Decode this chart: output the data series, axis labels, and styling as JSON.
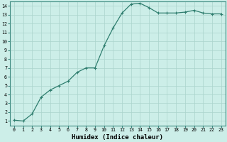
{
  "x": [
    0,
    1,
    2,
    3,
    4,
    5,
    6,
    7,
    8,
    9,
    10,
    11,
    12,
    13,
    14,
    15,
    16,
    17,
    18,
    19,
    20,
    21,
    22,
    23
  ],
  "y": [
    1.1,
    1.0,
    1.8,
    3.7,
    4.5,
    5.0,
    5.5,
    6.5,
    7.0,
    7.0,
    9.5,
    11.5,
    13.2,
    14.2,
    14.3,
    13.8,
    13.2,
    13.2,
    13.2,
    13.3,
    13.5,
    13.2,
    13.1,
    13.1
  ],
  "line_color": "#2e7d6e",
  "marker": "+",
  "marker_size": 3,
  "bg_color": "#cceee8",
  "grid_color": "#aad4cc",
  "xlabel": "Humidex (Indice chaleur)",
  "xlim": [
    -0.5,
    23.5
  ],
  "ylim": [
    0.5,
    14.5
  ],
  "yticks": [
    1,
    2,
    3,
    4,
    5,
    6,
    7,
    8,
    9,
    10,
    11,
    12,
    13,
    14
  ],
  "xticks": [
    0,
    1,
    2,
    3,
    4,
    5,
    6,
    7,
    8,
    9,
    10,
    11,
    12,
    13,
    14,
    15,
    16,
    17,
    18,
    19,
    20,
    21,
    22,
    23
  ],
  "tick_label_fontsize": 4.8,
  "xlabel_fontsize": 6.5,
  "line_width": 0.9,
  "spine_color": "#3d8a80"
}
